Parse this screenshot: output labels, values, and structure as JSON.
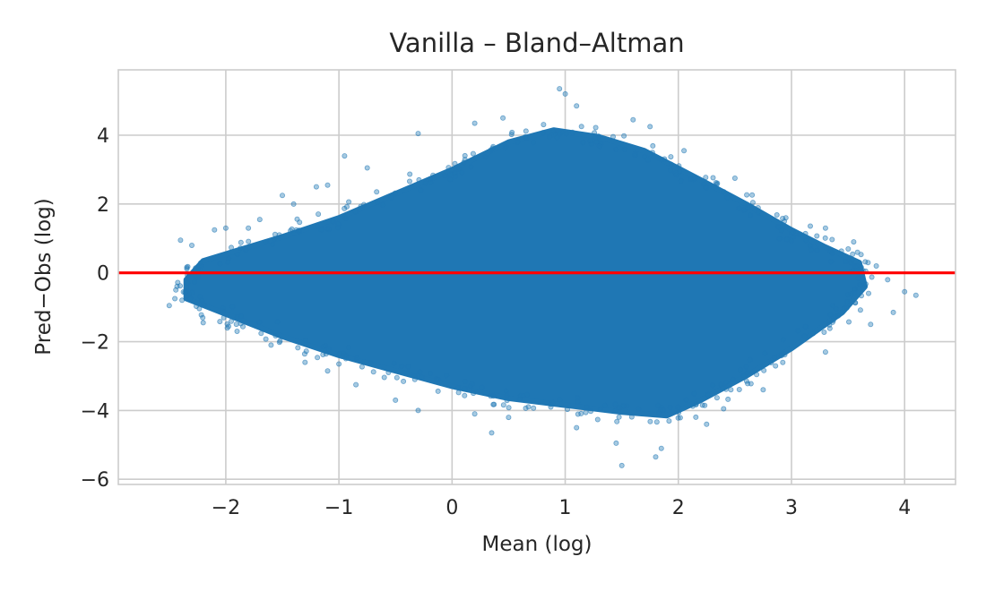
{
  "chart_data": {
    "type": "scatter",
    "title": "Vanilla – Bland–Altman",
    "xlabel": "Mean (log)",
    "ylabel": "Pred−Obs (log)",
    "xlim": [
      -2.95,
      4.45
    ],
    "ylim": [
      -6.15,
      5.9
    ],
    "xticks": [
      -2,
      -1,
      0,
      1,
      2,
      3,
      4
    ],
    "yticks": [
      -6,
      -4,
      -2,
      0,
      2,
      4
    ],
    "xtick_labels": [
      "−2",
      "−1",
      "0",
      "1",
      "2",
      "3",
      "4"
    ],
    "ytick_labels": [
      "−6",
      "−4",
      "−2",
      "0",
      "2",
      "4"
    ],
    "grid": true,
    "point_color": "#1f77b4",
    "point_alpha": 0.4,
    "reference_line": {
      "y": 0,
      "color": "#ff0000"
    },
    "dense_region_outline": [
      [
        -2.35,
        -0.2
      ],
      [
        -2.2,
        0.35
      ],
      [
        -1.5,
        1.05
      ],
      [
        -1.0,
        1.6
      ],
      [
        -0.5,
        2.3
      ],
      [
        0.0,
        3.0
      ],
      [
        0.5,
        3.8
      ],
      [
        0.9,
        4.15
      ],
      [
        1.3,
        3.95
      ],
      [
        1.7,
        3.55
      ],
      [
        2.2,
        2.7
      ],
      [
        2.6,
        2.0
      ],
      [
        3.0,
        1.25
      ],
      [
        3.3,
        0.75
      ],
      [
        3.6,
        0.3
      ],
      [
        3.65,
        -0.4
      ],
      [
        3.45,
        -1.15
      ],
      [
        3.0,
        -2.2
      ],
      [
        2.6,
        -3.0
      ],
      [
        2.2,
        -3.7
      ],
      [
        1.9,
        -4.15
      ],
      [
        1.5,
        -4.05
      ],
      [
        1.0,
        -3.85
      ],
      [
        0.5,
        -3.65
      ],
      [
        0.0,
        -3.3
      ],
      [
        -0.5,
        -2.85
      ],
      [
        -1.0,
        -2.4
      ],
      [
        -1.5,
        -1.85
      ],
      [
        -2.0,
        -1.2
      ],
      [
        -2.35,
        -0.75
      ]
    ],
    "outlier_points": [
      [
        -2.5,
        -0.95
      ],
      [
        -2.45,
        -0.75
      ],
      [
        -2.4,
        0.95
      ],
      [
        -2.3,
        0.8
      ],
      [
        -2.2,
        -1.45
      ],
      [
        -2.1,
        1.25
      ],
      [
        -2.0,
        1.3
      ],
      [
        -1.8,
        1.3
      ],
      [
        -1.7,
        1.55
      ],
      [
        -1.5,
        2.25
      ],
      [
        -1.4,
        2.0
      ],
      [
        -1.2,
        2.5
      ],
      [
        -1.1,
        2.55
      ],
      [
        -0.95,
        3.4
      ],
      [
        -0.75,
        3.05
      ],
      [
        -0.3,
        4.05
      ],
      [
        0.2,
        4.35
      ],
      [
        0.45,
        4.5
      ],
      [
        0.95,
        5.35
      ],
      [
        1.0,
        5.2
      ],
      [
        1.1,
        4.85
      ],
      [
        1.6,
        4.45
      ],
      [
        1.75,
        4.25
      ],
      [
        2.05,
        3.55
      ],
      [
        2.5,
        2.75
      ],
      [
        2.95,
        1.6
      ],
      [
        3.3,
        1.3
      ],
      [
        3.55,
        0.9
      ],
      [
        3.75,
        0.2
      ],
      [
        3.85,
        -0.2
      ],
      [
        4.0,
        -0.55
      ],
      [
        4.1,
        -0.65
      ],
      [
        3.9,
        -1.15
      ],
      [
        3.7,
        -1.5
      ],
      [
        3.3,
        -2.3
      ],
      [
        2.75,
        -3.4
      ],
      [
        2.25,
        -4.4
      ],
      [
        1.85,
        -5.1
      ],
      [
        1.8,
        -5.35
      ],
      [
        1.5,
        -5.6
      ],
      [
        1.45,
        -4.95
      ],
      [
        1.1,
        -4.5
      ],
      [
        0.35,
        -4.65
      ],
      [
        0.2,
        -4.1
      ],
      [
        -0.3,
        -4.0
      ],
      [
        -0.5,
        -3.7
      ],
      [
        -0.85,
        -3.25
      ],
      [
        -1.1,
        -2.85
      ],
      [
        -1.3,
        -2.6
      ],
      [
        -1.6,
        -2.1
      ],
      [
        -1.0,
        -2.65
      ],
      [
        -1.9,
        -1.7
      ],
      [
        0.5,
        -4.2
      ],
      [
        2.4,
        -3.95
      ]
    ]
  }
}
